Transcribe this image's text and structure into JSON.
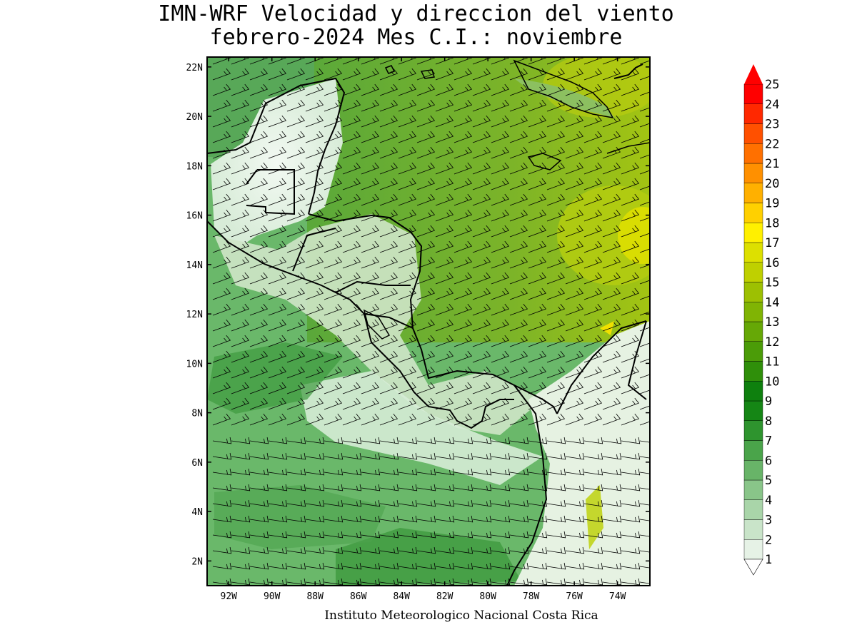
{
  "title": {
    "line1": "IMN-WRF Velocidad y direccion del viento",
    "line2": "febrero-2024 Mes C.I.: noviembre"
  },
  "credit": "Instituto Meteorologico Nacional Costa Rica",
  "map": {
    "lon_range": [
      -93,
      -72.5
    ],
    "lat_range": [
      1,
      22.4
    ],
    "lon_ticks": [
      -92,
      -90,
      -88,
      -86,
      -84,
      -82,
      -80,
      -78,
      -76,
      -74
    ],
    "lon_tick_labels": [
      "92W",
      "90W",
      "88W",
      "86W",
      "84W",
      "82W",
      "80W",
      "78W",
      "76W",
      "74W"
    ],
    "lat_ticks": [
      2,
      4,
      6,
      8,
      10,
      12,
      14,
      16,
      18,
      20,
      22
    ],
    "lat_tick_labels": [
      "2N",
      "4N",
      "6N",
      "8N",
      "10N",
      "12N",
      "14N",
      "16N",
      "18N",
      "20N",
      "22N"
    ]
  },
  "colorbar": {
    "labels": [
      "1",
      "2",
      "3",
      "4",
      "5",
      "6",
      "7",
      "8",
      "9",
      "10",
      "11",
      "12",
      "13",
      "14",
      "15",
      "16",
      "17",
      "18",
      "19",
      "20",
      "21",
      "22",
      "23",
      "24",
      "25"
    ],
    "colors": [
      "#ffffff",
      "#e6f2e6",
      "#c9e4c9",
      "#a9d5a9",
      "#89c589",
      "#68b468",
      "#4aa44a",
      "#2e942e",
      "#158615",
      "#0e800e",
      "#2f8f0a",
      "#4b9c08",
      "#66a806",
      "#80b404",
      "#9dc002",
      "#bfd000",
      "#dde000",
      "#fff000",
      "#ffd000",
      "#ffb000",
      "#ff9000",
      "#ff7000",
      "#ff5000",
      "#ff2800",
      "#ff0000"
    ],
    "arrow_color": "#ff0000"
  }
}
